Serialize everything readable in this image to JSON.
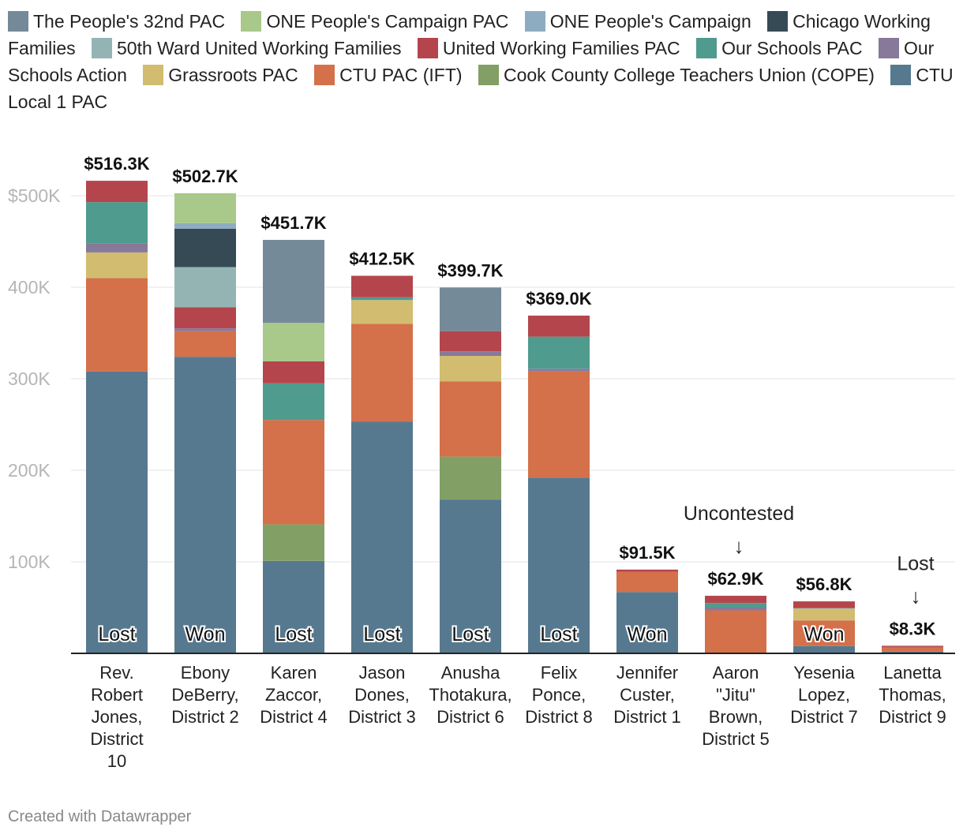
{
  "credit": "Created with Datawrapper",
  "chart_data": {
    "type": "bar",
    "stacked": true,
    "ylim": [
      0,
      500000
    ],
    "yticks": [
      100000,
      200000,
      300000,
      400000,
      500000
    ],
    "ytick_labels": [
      "100K",
      "200K",
      "300K",
      "400K",
      "$500K"
    ],
    "categories": [
      [
        "Rev.",
        "Robert",
        "Jones,",
        "District",
        "10"
      ],
      [
        "Ebony",
        "DeBerry,",
        "District 2"
      ],
      [
        "Karen",
        "Zaccor,",
        "District 4"
      ],
      [
        "Jason",
        "Dones,",
        "District 3"
      ],
      [
        "Anusha",
        "Thotakura,",
        "District 6"
      ],
      [
        "Felix",
        "Ponce,",
        "District 8"
      ],
      [
        "Jennifer",
        "Custer,",
        "District 1"
      ],
      [
        "Aaron",
        "\"Jitu\"",
        "Brown,",
        "District 5"
      ],
      [
        "Yesenia",
        "Lopez,",
        "District 7"
      ],
      [
        "Lanetta",
        "Thomas,",
        "District 9"
      ]
    ],
    "totals": [
      "$516.3K",
      "$502.7K",
      "$451.7K",
      "$412.5K",
      "$399.7K",
      "$369.0K",
      "$91.5K",
      "$62.9K",
      "$56.8K",
      "$8.3K"
    ],
    "outcomes": [
      "Lost",
      "Won",
      "Lost",
      "Lost",
      "Lost",
      "Lost",
      "Won",
      "",
      "Won",
      ""
    ],
    "annotations": [
      {
        "bar": 7,
        "text": "Uncontested",
        "arrow": "↓"
      },
      {
        "bar": 9,
        "text": "Lost",
        "arrow": "↓"
      }
    ],
    "series": [
      {
        "name": "CTU Local 1 PAC",
        "color": "#56798f",
        "values": [
          308000,
          324000,
          101000,
          253000,
          168000,
          192000,
          67000,
          0,
          8000,
          2000
        ]
      },
      {
        "name": "Cook County College Teachers Union (COPE)",
        "color": "#82a066",
        "values": [
          0,
          0,
          40000,
          0,
          47000,
          0,
          0,
          0,
          0,
          0
        ]
      },
      {
        "name": "CTU PAC (IFT)",
        "color": "#d4704a",
        "values": [
          102000,
          28000,
          114000,
          107000,
          82000,
          116000,
          22000,
          47000,
          28000,
          4000
        ]
      },
      {
        "name": "Grassroots PAC",
        "color": "#d1bc6f",
        "values": [
          28000,
          0,
          0,
          26000,
          28000,
          0,
          0,
          0,
          13000,
          0
        ]
      },
      {
        "name": "Our Schools Action",
        "color": "#87799a",
        "values": [
          10000,
          3000,
          0,
          0,
          5000,
          3000,
          0,
          3000,
          1000,
          1000
        ]
      },
      {
        "name": "Our Schools PAC",
        "color": "#4f9b8e",
        "values": [
          45000,
          0,
          40000,
          3000,
          0,
          35000,
          0,
          5000,
          0,
          0
        ]
      },
      {
        "name": "United Working Families PAC",
        "color": "#b5454c",
        "values": [
          23300,
          23000,
          24000,
          23500,
          22000,
          23000,
          2500,
          7900,
          6800,
          1300
        ]
      },
      {
        "name": "50th Ward United Working Families",
        "color": "#94b4b4",
        "values": [
          0,
          44000,
          0,
          0,
          0,
          0,
          0,
          0,
          0,
          0
        ]
      },
      {
        "name": "Chicago Working Families",
        "color": "#364a55",
        "values": [
          0,
          42000,
          0,
          0,
          0,
          0,
          0,
          0,
          0,
          0
        ]
      },
      {
        "name": "ONE People's Campaign",
        "color": "#8eacc1",
        "values": [
          0,
          6000,
          0,
          0,
          0,
          0,
          0,
          0,
          0,
          0
        ]
      },
      {
        "name": "ONE People's Campaign PAC",
        "color": "#a8c98a",
        "values": [
          0,
          32700,
          42000,
          0,
          0,
          0,
          0,
          0,
          0,
          0
        ]
      },
      {
        "name": "The People's 32nd PAC",
        "color": "#758a98",
        "values": [
          0,
          0,
          90700,
          0,
          47700,
          0,
          0,
          0,
          0,
          0
        ]
      }
    ]
  }
}
